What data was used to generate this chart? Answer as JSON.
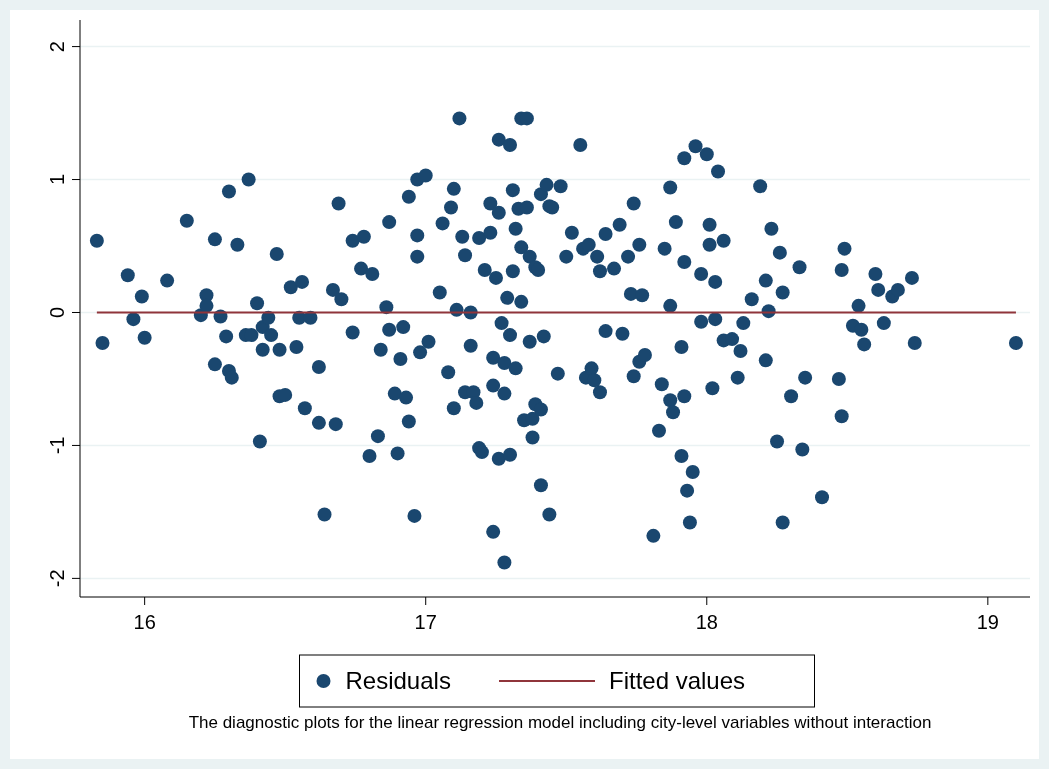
{
  "chart_data": {
    "type": "scatter",
    "annotations": [
      "The diagnostic plots for the linear regression model including city-level variables without interaction"
    ],
    "xlim": [
      15.77,
      19.15
    ],
    "ylim": [
      -2.14,
      2.2
    ],
    "xticks": [
      16,
      17,
      18,
      19
    ],
    "yticks": [
      -2,
      -1,
      0,
      1,
      2
    ],
    "grid": "y",
    "legend": "bottom",
    "series": [
      {
        "name": "Residuals",
        "type": "scatter",
        "marker": "circle",
        "color": "#1a476f",
        "x": [
          15.83,
          15.85,
          15.94,
          15.96,
          15.99,
          16.0,
          16.08,
          16.15,
          16.2,
          16.22,
          16.22,
          16.25,
          16.25,
          16.27,
          16.29,
          16.3,
          16.3,
          16.31,
          16.33,
          16.37,
          16.36,
          16.38,
          16.4,
          16.41,
          16.42,
          16.42,
          16.44,
          16.45,
          16.47,
          16.48,
          16.48,
          16.5,
          16.52,
          16.54,
          16.55,
          16.56,
          16.57,
          16.59,
          16.62,
          16.62,
          16.64,
          16.67,
          16.68,
          16.69,
          16.7,
          16.74,
          16.74,
          16.77,
          16.78,
          16.8,
          16.81,
          16.83,
          16.84,
          16.86,
          16.87,
          16.87,
          16.89,
          16.9,
          16.91,
          16.92,
          16.93,
          16.94,
          16.94,
          16.96,
          16.97,
          16.97,
          16.97,
          16.98,
          17.0,
          17.01,
          17.05,
          17.06,
          17.08,
          17.09,
          17.1,
          17.1,
          17.11,
          17.12,
          17.13,
          17.14,
          17.14,
          17.16,
          17.16,
          17.17,
          17.18,
          17.19,
          17.19,
          17.2,
          17.21,
          17.23,
          17.23,
          17.24,
          17.24,
          17.24,
          17.25,
          17.26,
          17.26,
          17.26,
          17.27,
          17.28,
          17.28,
          17.28,
          17.29,
          17.3,
          17.3,
          17.3,
          17.31,
          17.31,
          17.32,
          17.32,
          17.33,
          17.34,
          17.34,
          17.34,
          17.35,
          17.36,
          17.36,
          17.37,
          17.37,
          17.38,
          17.38,
          17.39,
          17.39,
          17.4,
          17.41,
          17.41,
          17.41,
          17.42,
          17.43,
          17.44,
          17.44,
          17.45,
          17.47,
          17.48,
          17.5,
          17.52,
          17.55,
          17.56,
          17.57,
          17.58,
          17.59,
          17.6,
          17.61,
          17.62,
          17.62,
          17.64,
          17.64,
          17.67,
          17.69,
          17.7,
          17.72,
          17.73,
          17.74,
          17.74,
          17.76,
          17.76,
          17.77,
          17.78,
          17.81,
          17.83,
          17.84,
          17.85,
          17.87,
          17.87,
          17.87,
          17.88,
          17.89,
          17.91,
          17.92,
          17.92,
          17.92,
          17.93,
          17.94,
          17.95,
          17.91,
          17.96,
          17.98,
          17.98,
          18.0,
          18.01,
          18.01,
          18.02,
          18.03,
          18.03,
          18.04,
          18.06,
          18.06,
          18.09,
          18.11,
          18.12,
          18.13,
          18.16,
          18.19,
          18.21,
          18.21,
          18.22,
          18.23,
          18.27,
          18.25,
          18.26,
          18.27,
          18.3,
          18.33,
          18.35,
          18.41,
          18.34,
          18.47,
          18.48,
          18.48,
          18.49,
          18.52,
          18.54,
          18.56,
          18.55,
          18.6,
          18.61,
          18.63,
          18.66,
          18.68,
          18.73,
          18.74,
          19.1
        ],
        "values": [
          0.54,
          -0.23,
          0.28,
          -0.05,
          0.12,
          -0.19,
          0.24,
          0.69,
          -0.02,
          0.13,
          0.05,
          0.55,
          -0.39,
          -0.03,
          -0.18,
          0.91,
          -0.44,
          -0.49,
          0.51,
          1.0,
          -0.17,
          -0.17,
          0.07,
          -0.97,
          -0.28,
          -0.11,
          -0.04,
          -0.17,
          0.44,
          -0.63,
          -0.28,
          -0.62,
          0.19,
          -0.26,
          -0.04,
          0.23,
          -0.72,
          -0.04,
          -0.83,
          -0.41,
          -1.52,
          0.17,
          -0.84,
          0.82,
          0.1,
          -0.15,
          0.54,
          0.33,
          0.57,
          -1.08,
          0.29,
          -0.93,
          -0.28,
          0.04,
          0.68,
          -0.13,
          -0.61,
          -1.06,
          -0.35,
          -0.11,
          -0.64,
          0.87,
          -0.82,
          -1.53,
          0.58,
          0.42,
          1.0,
          -0.3,
          1.03,
          -0.22,
          0.15,
          0.67,
          -0.45,
          0.79,
          -0.72,
          0.93,
          0.02,
          1.46,
          0.57,
          0.43,
          -0.6,
          0.0,
          -0.25,
          -0.6,
          -0.68,
          0.56,
          -1.02,
          -1.05,
          0.32,
          0.6,
          0.82,
          -0.55,
          -1.65,
          -0.34,
          0.26,
          1.3,
          -1.1,
          0.75,
          -0.08,
          -1.88,
          -0.61,
          -0.38,
          0.11,
          1.26,
          -0.17,
          -1.07,
          0.31,
          0.92,
          0.63,
          -0.42,
          0.78,
          1.46,
          0.49,
          0.08,
          -0.81,
          0.79,
          1.46,
          0.42,
          -0.22,
          -0.8,
          -0.94,
          0.34,
          -0.69,
          0.32,
          -1.3,
          0.89,
          -0.73,
          -0.18,
          0.96,
          0.8,
          -1.52,
          0.79,
          -0.46,
          0.95,
          0.42,
          0.6,
          1.26,
          0.48,
          -0.49,
          0.51,
          -0.42,
          -0.51,
          0.42,
          0.31,
          -0.6,
          -0.14,
          0.59,
          0.33,
          0.66,
          -0.16,
          0.42,
          0.14,
          0.82,
          -0.48,
          -0.37,
          0.51,
          0.13,
          -0.32,
          -1.68,
          -0.89,
          -0.54,
          0.48,
          0.05,
          0.94,
          -0.66,
          -0.75,
          0.68,
          -0.26,
          1.16,
          -0.63,
          0.38,
          -1.34,
          -1.58,
          -1.2,
          -1.08,
          1.25,
          0.29,
          -0.07,
          1.19,
          0.66,
          0.51,
          -0.57,
          -0.05,
          0.23,
          1.06,
          -0.21,
          0.54,
          -0.2,
          -0.49,
          -0.29,
          -0.08,
          0.1,
          0.95,
          -0.36,
          0.24,
          0.01,
          0.63,
          -1.58,
          -0.97,
          0.45,
          0.15,
          -0.63,
          0.34,
          -0.49,
          -1.39,
          -1.03,
          -0.5,
          0.32,
          -0.78,
          0.48,
          -0.1,
          0.05,
          -0.24,
          -0.13,
          0.29,
          0.17,
          -0.08,
          0.12,
          0.17,
          0.26,
          -0.23,
          -0.23
        ]
      },
      {
        "name": "Fitted values",
        "type": "line",
        "marker": "none",
        "line_style": "solid",
        "color": "#90353b",
        "x": [
          15.83,
          19.1
        ],
        "values": [
          0,
          0
        ]
      }
    ]
  }
}
